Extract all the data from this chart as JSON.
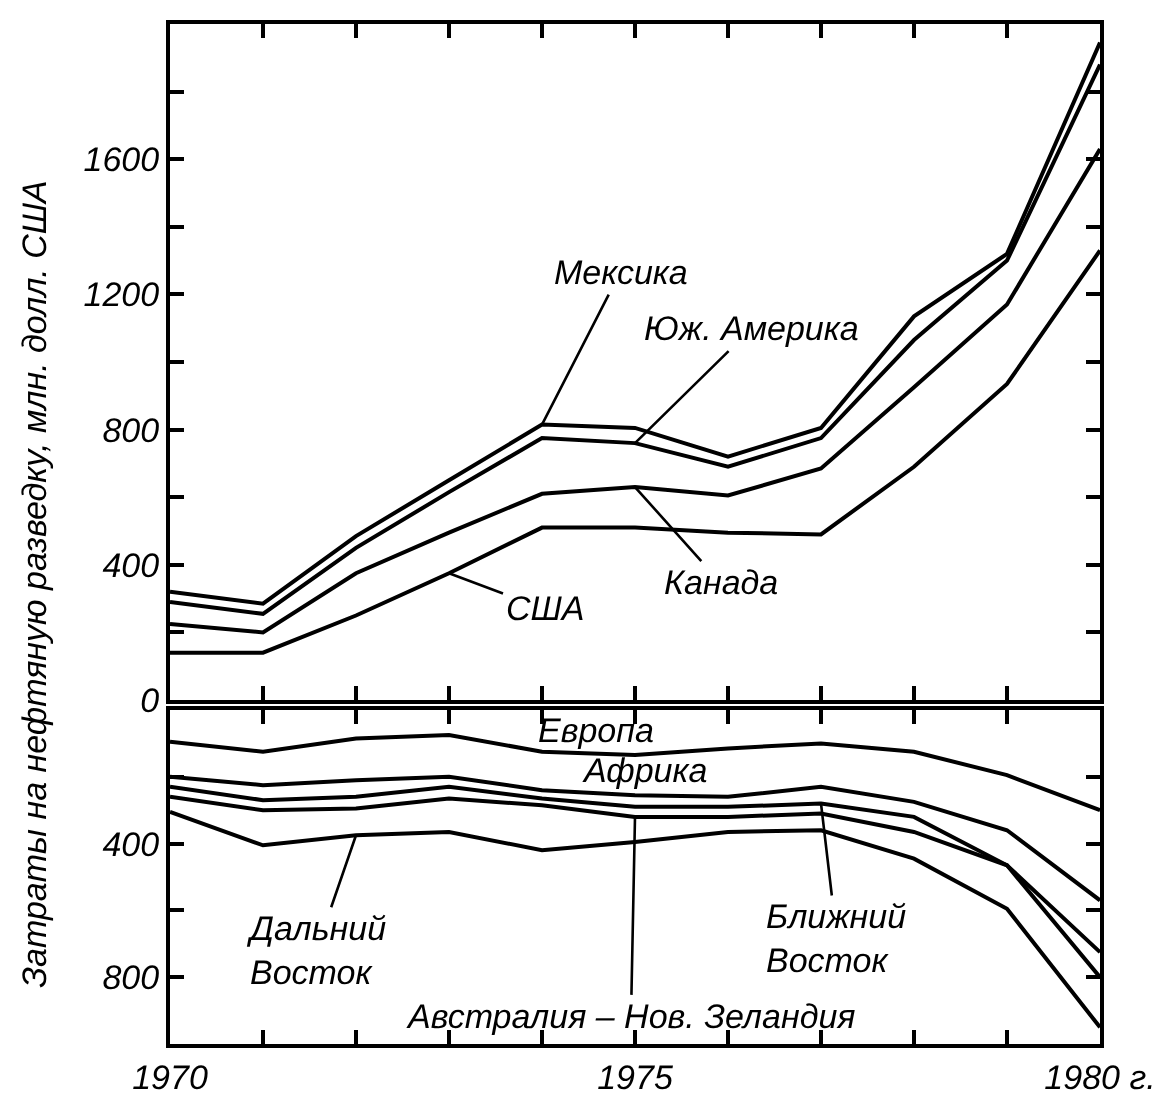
{
  "chart_data": [
    {
      "type": "line",
      "ylabel": "Затраты на нефтяную разведку, млн. долл. США",
      "x": [
        1970,
        1971,
        1972,
        1973,
        1974,
        1975,
        1976,
        1977,
        1978,
        1979,
        1980
      ],
      "xlim": [
        1970,
        1980
      ],
      "xticks": [
        {
          "value": 1970,
          "label": null
        },
        {
          "value": 1971,
          "label": null
        },
        {
          "value": 1972,
          "label": null
        },
        {
          "value": 1973,
          "label": null
        },
        {
          "value": 1974,
          "label": null
        },
        {
          "value": 1975,
          "label": null
        },
        {
          "value": 1976,
          "label": null
        },
        {
          "value": 1977,
          "label": null
        },
        {
          "value": 1978,
          "label": null
        },
        {
          "value": 1979,
          "label": null
        },
        {
          "value": 1980,
          "label": null
        }
      ],
      "ylim": [
        0,
        2000
      ],
      "yticks": [
        0,
        {
          "value": 200,
          "label": null
        },
        400,
        {
          "value": 600,
          "label": null
        },
        800,
        {
          "value": 1000,
          "label": null
        },
        1200,
        {
          "value": 1400,
          "label": null
        },
        1600,
        {
          "value": 1800,
          "label": null
        }
      ],
      "tick_labels": "y",
      "series": [
        {
          "color": "#000000",
          "values": [
            140,
            140,
            250,
            375,
            510,
            510,
            495,
            490,
            690,
            935,
            1330
          ]
        },
        {
          "color": "#000000",
          "values": [
            225,
            200,
            375,
            495,
            610,
            630,
            605,
            685,
            925,
            1170,
            1630
          ]
        },
        {
          "color": "#000000",
          "values": [
            290,
            255,
            450,
            615,
            775,
            760,
            690,
            775,
            1065,
            1300,
            1880
          ]
        },
        {
          "color": "#000000",
          "values": [
            320,
            285,
            485,
            650,
            815,
            805,
            720,
            805,
            1135,
            1320,
            1945
          ]
        }
      ],
      "annotations": [
        {
          "text": "США",
          "x": 1973,
          "y": 375
        },
        {
          "text": "Канада",
          "x": 1975,
          "y": 630
        },
        {
          "text": "Юж. Америка",
          "x": 1975,
          "y": 760
        },
        {
          "text": "Мексика",
          "x": 1974,
          "y": 815
        }
      ]
    },
    {
      "type": "line",
      "x": [
        1970,
        1971,
        1972,
        1973,
        1974,
        1975,
        1976,
        1977,
        1978,
        1979,
        1980
      ],
      "xlim": [
        1970,
        1980
      ],
      "xticks": [
        {
          "value": 1970,
          "label": "1970"
        },
        {
          "value": 1971,
          "label": null
        },
        {
          "value": 1972,
          "label": null
        },
        {
          "value": 1973,
          "label": null
        },
        {
          "value": 1974,
          "label": null
        },
        {
          "value": 1975,
          "label": "1975"
        },
        {
          "value": 1976,
          "label": null
        },
        {
          "value": 1977,
          "label": null
        },
        {
          "value": 1978,
          "label": null
        },
        {
          "value": 1979,
          "label": null
        },
        {
          "value": 1980,
          "label": "1980 г."
        }
      ],
      "ylim": [
        1000,
        0
      ],
      "yticks": [
        {
          "value": 200,
          "label": null
        },
        400,
        {
          "value": 600,
          "label": null
        },
        800
      ],
      "series": [
        {
          "color": "#000000",
          "values": [
            95,
            125,
            85,
            75,
            125,
            135,
            115,
            100,
            125,
            195,
            300
          ]
        },
        {
          "color": "#000000",
          "values": [
            200,
            225,
            210,
            200,
            240,
            255,
            260,
            230,
            275,
            360,
            570
          ]
        },
        {
          "color": "#000000",
          "values": [
            230,
            270,
            260,
            230,
            265,
            290,
            290,
            280,
            320,
            465,
            725
          ]
        },
        {
          "color": "#000000",
          "values": [
            260,
            300,
            295,
            265,
            285,
            320,
            320,
            310,
            365,
            465,
            800
          ]
        },
        {
          "color": "#000000",
          "values": [
            305,
            405,
            375,
            365,
            420,
            395,
            365,
            360,
            445,
            595,
            950
          ]
        }
      ],
      "annotations": [
        {
          "text": "Европа",
          "x": 1975,
          "y": 135
        },
        {
          "text": "Африка",
          "x": 1975,
          "y": 255
        },
        {
          "text": "Ближний\nВосток",
          "x": 1977,
          "y": 280
        },
        {
          "text": "Австралия – Нов. Зеландия",
          "x": 1975,
          "y": 320
        },
        {
          "text": "Дальний\nВосток",
          "x": 1972,
          "y": 375
        }
      ]
    }
  ]
}
